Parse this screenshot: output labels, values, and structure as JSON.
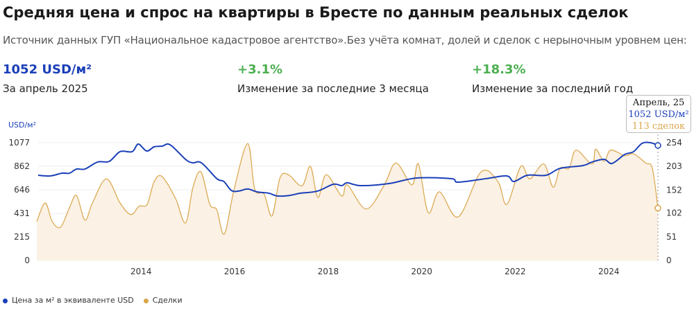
{
  "header": {
    "title": "Средняя цена и спрос на квартиры в Бресте по данным реальных сделок",
    "subtitle": "Источник данных ГУП «Национальное кадастровое агентство».Без учёта комнат, долей и сделок с нерыночным уровнем цен:"
  },
  "stats": [
    {
      "value": "1052 USD/м²",
      "label": "За апрель 2025",
      "color": "#1a3fb8"
    },
    {
      "value": "+3.1%",
      "label": "Изменение за последние 3 месяца",
      "color": "#4caf50"
    },
    {
      "value": "+18.3%",
      "label": "Изменение за последний год",
      "color": "#4caf50"
    }
  ],
  "tooltip": {
    "date": "Апрель, 25",
    "price": "1052 USD/м²",
    "deals": "113 сделок"
  },
  "legend": [
    {
      "label": "Цена за м² в эквиваленте USD",
      "color": "#1a3fb8"
    },
    {
      "label": "Сделки",
      "color": "#d9a54a"
    }
  ],
  "chart_data": {
    "type": "line",
    "left_axis_label": "USD/м²",
    "xlim": [
      2011.8,
      2025.05
    ],
    "x_ticks": [
      "2014",
      "2016",
      "2018",
      "2020",
      "2022",
      "2024"
    ],
    "y_left_ticks": [
      "0",
      "215",
      "431",
      "646",
      "862",
      "1077"
    ],
    "y_left_lim": [
      0,
      1077
    ],
    "y_right_ticks": [
      "0",
      "51",
      "102",
      "152",
      "203",
      "254"
    ],
    "y_right_lim": [
      0,
      254
    ],
    "grid": true,
    "legend_position": "bottom-left",
    "series": [
      {
        "name": "Цена за м² в эквиваленте USD",
        "axis": "left",
        "color": "#1a3fb8",
        "x": [
          2011.8,
          2012.06,
          2012.31,
          2012.47,
          2012.62,
          2012.8,
          2013.07,
          2013.32,
          2013.55,
          2013.81,
          2013.94,
          2014.12,
          2014.28,
          2014.45,
          2014.62,
          2014.95,
          2015.1,
          2015.29,
          2015.62,
          2015.77,
          2015.93,
          2016.08,
          2016.28,
          2016.48,
          2016.73,
          2016.92,
          2017.18,
          2017.41,
          2017.77,
          2018.11,
          2018.29,
          2018.41,
          2018.7,
          2019.3,
          2019.89,
          2020.63,
          2020.78,
          2021.37,
          2021.82,
          2021.97,
          2022.26,
          2022.66,
          2022.96,
          2023.45,
          2023.64,
          2023.9,
          2024.07,
          2024.34,
          2024.53,
          2024.71,
          2024.89,
          2025.05
        ],
        "values": [
          779,
          773,
          798,
          798,
          836,
          836,
          900,
          906,
          995,
          995,
          1064,
          1001,
          1039,
          1045,
          1058,
          925,
          893,
          893,
          748,
          722,
          640,
          634,
          653,
          627,
          615,
          589,
          595,
          615,
          634,
          697,
          684,
          710,
          684,
          703,
          754,
          748,
          716,
          748,
          773,
          722,
          779,
          779,
          842,
          868,
          900,
          925,
          887,
          969,
          995,
          1071,
          1077,
          1052
        ]
      },
      {
        "name": "Сделки",
        "axis": "right",
        "color": "#d9a54a",
        "type": "area",
        "x": [
          2011.77,
          2011.95,
          2012.1,
          2012.28,
          2012.47,
          2012.62,
          2012.8,
          2012.96,
          2013.26,
          2013.55,
          2013.78,
          2013.96,
          2014.13,
          2014.28,
          2014.45,
          2014.74,
          2014.95,
          2015.11,
          2015.28,
          2015.47,
          2015.62,
          2015.78,
          2015.99,
          2016.28,
          2016.43,
          2016.63,
          2016.8,
          2016.97,
          2017.15,
          2017.44,
          2017.62,
          2017.78,
          2017.96,
          2018.29,
          2018.41,
          2018.81,
          2019.19,
          2019.45,
          2019.79,
          2019.93,
          2020.14,
          2020.38,
          2020.78,
          2021.27,
          2021.63,
          2021.82,
          2022.12,
          2022.31,
          2022.61,
          2022.81,
          2022.96,
          2023.15,
          2023.3,
          2023.64,
          2023.72,
          2023.9,
          2024.04,
          2024.34,
          2024.53,
          2024.79,
          2024.93,
          2025.05
        ],
        "values": [
          84,
          124,
          84,
          72,
          114,
          140,
          87,
          124,
          176,
          124,
          99,
          117,
          121,
          170,
          181,
          133,
          81,
          158,
          191,
          121,
          109,
          57,
          154,
          252,
          154,
          143,
          96,
          178,
          185,
          161,
          203,
          136,
          185,
          139,
          163,
          111,
          161,
          210,
          163,
          208,
          103,
          148,
          94,
          191,
          170,
          121,
          203,
          176,
          208,
          158,
          199,
          199,
          238,
          208,
          240,
          214,
          238,
          226,
          230,
          210,
          199,
          113
        ]
      }
    ]
  }
}
